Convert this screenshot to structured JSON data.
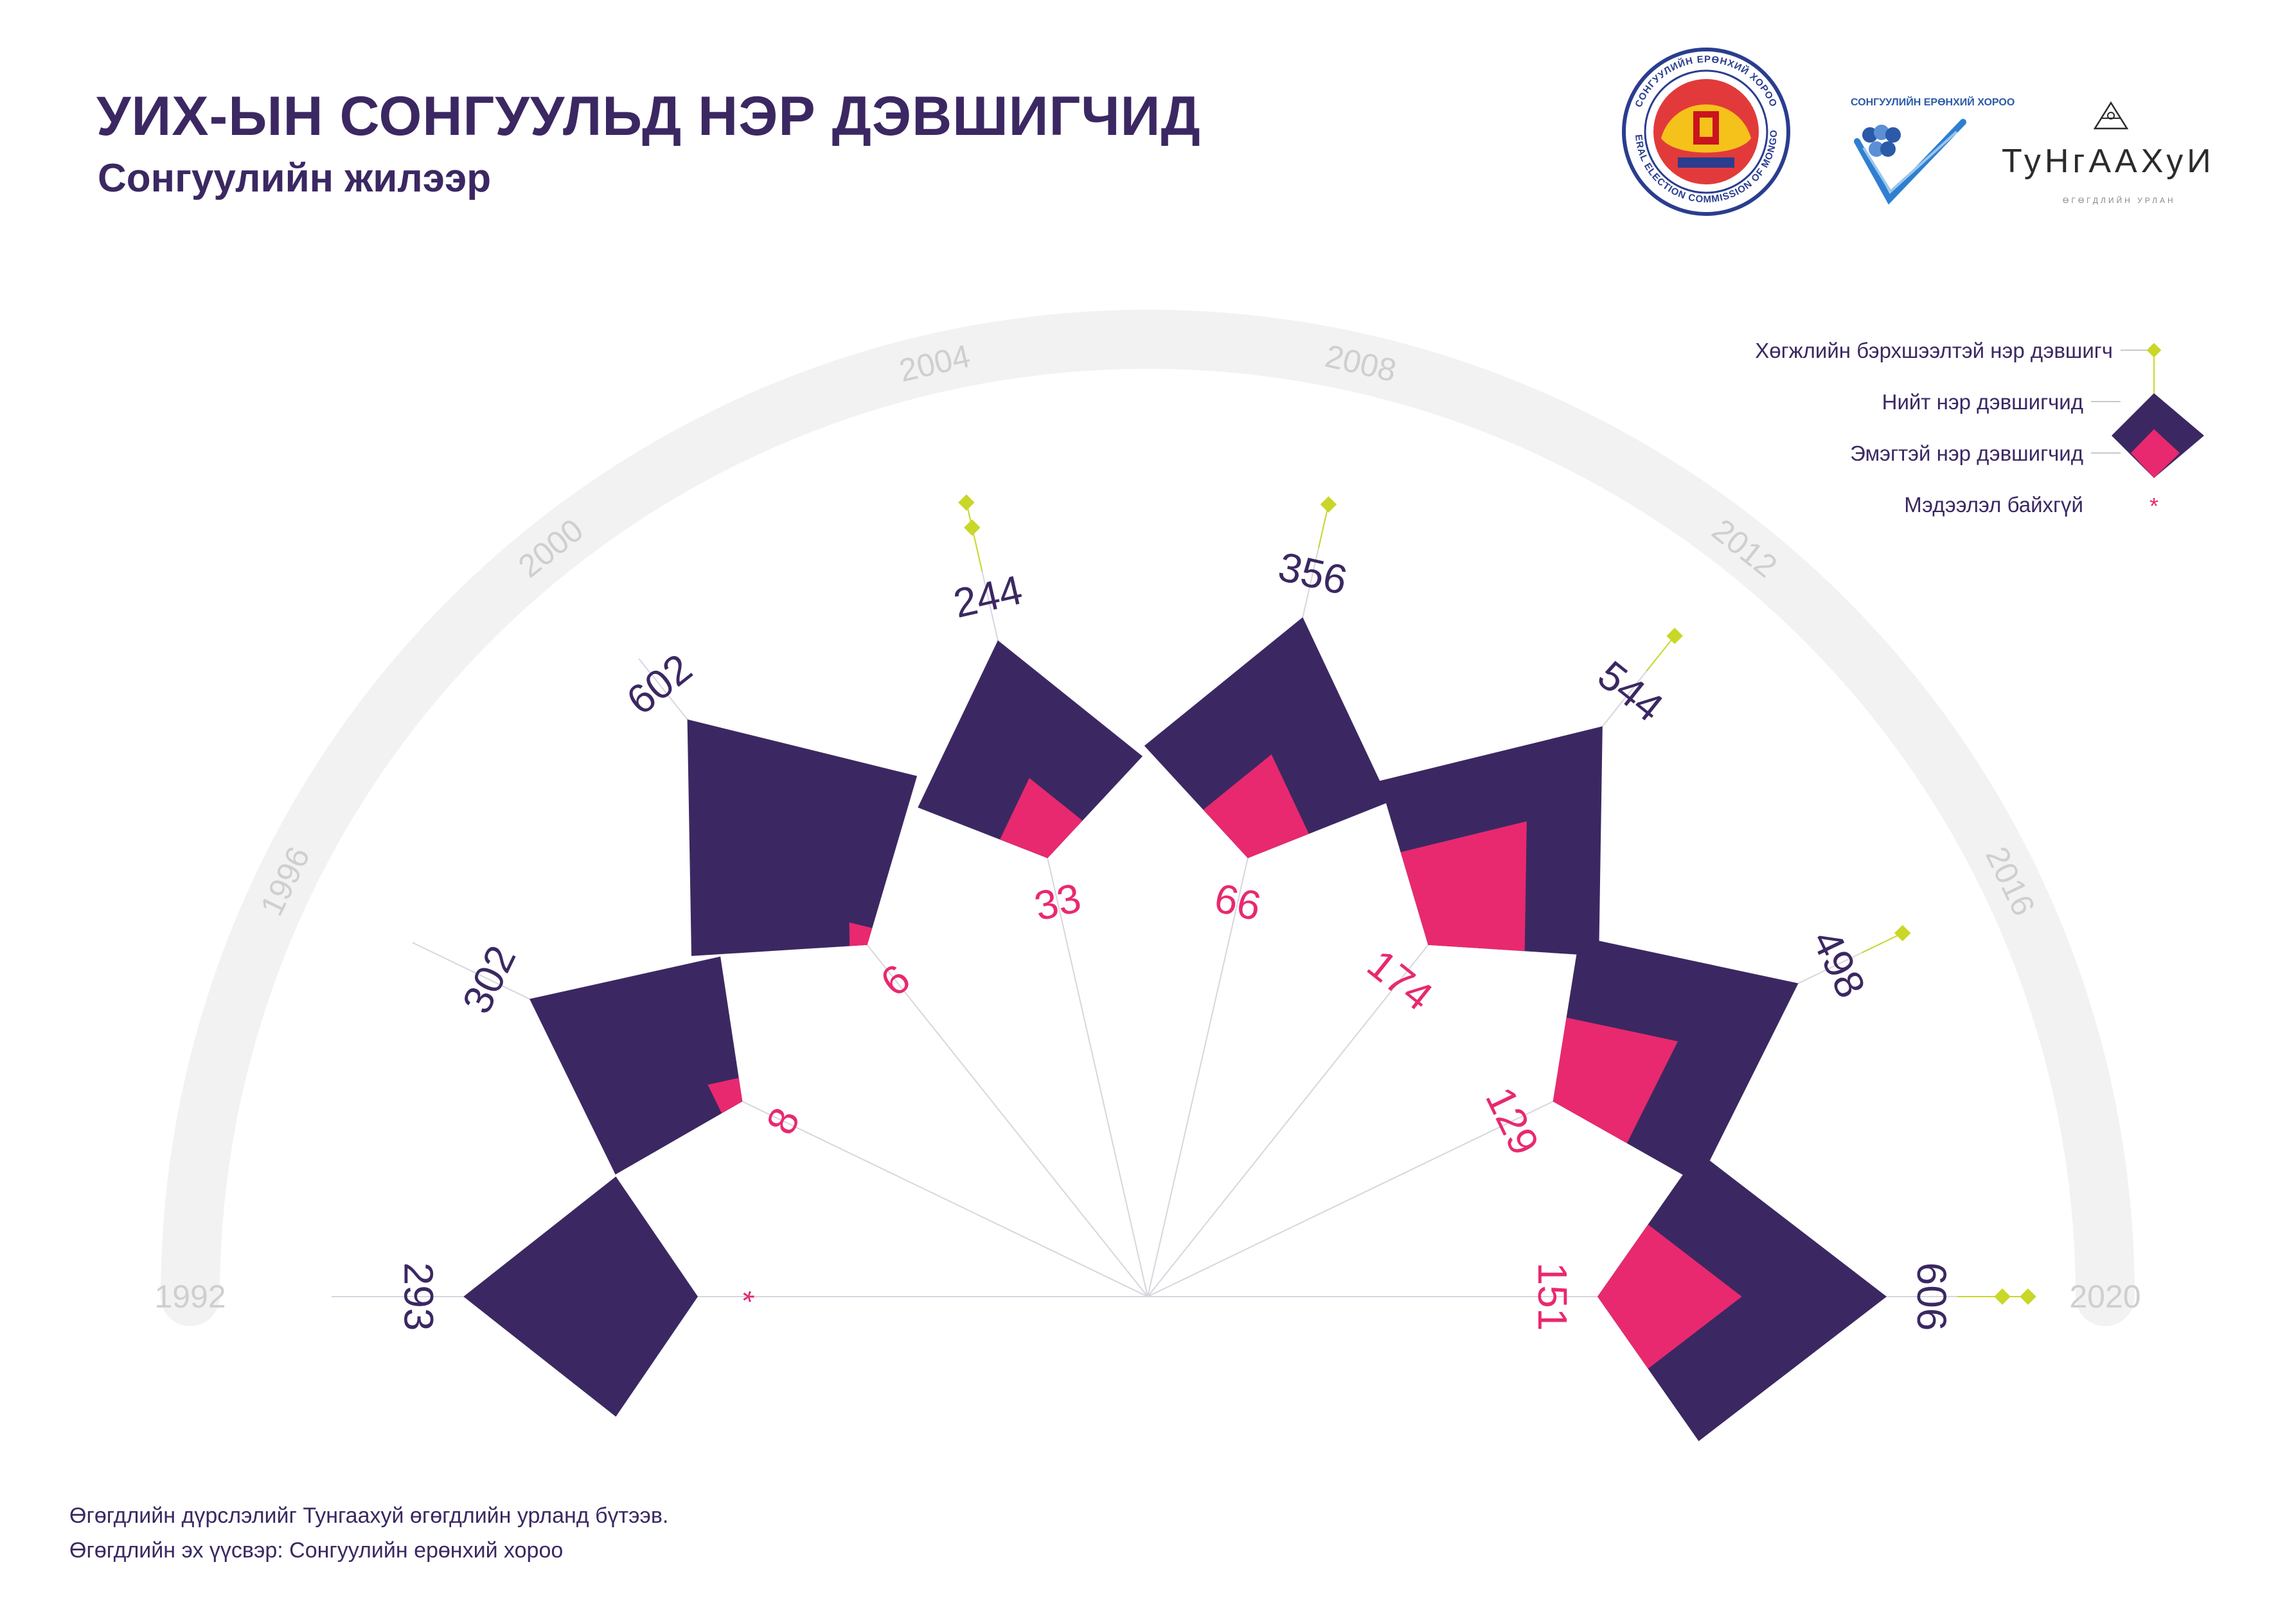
{
  "header": {
    "title": "УИХ-ЫН СОНГУУЛЬД НЭР ДЭВШИГЧИД",
    "subtitle": "Сонгуулийн жилээр"
  },
  "logos": {
    "gec_text": "GENERAL ELECTION COMMISSION OF MONGOLIA",
    "gec_top_text": "СОНГУУЛИЙН ЕРӨНХИЙ ХОРОО",
    "commission_text": "СОНГУУЛИЙН ЕРӨНХИЙ ХОРОО",
    "tungaahui_name": "ТуНгААХуИ",
    "tungaahui_sub": "ӨГӨГДЛИЙН УРЛАН"
  },
  "legend": {
    "disabled": "Хөгжлийн бэрхшээлтэй нэр дэвшигч",
    "total": "Нийт нэр дэвшигчид",
    "female": "Эмэгтэй нэр дэвшигчид",
    "no_data": "Мэдээлэл байхгүй",
    "no_data_symbol": "*"
  },
  "footer": {
    "line1": "Өгөгдлийн дүрслэлийг Тунгаахуй өгөгдлийн урланд бүтээв.",
    "line2": "Өгөгдлийн эх үүсвэр: Сонгуулийн ерөнхий хороо"
  },
  "colors": {
    "total": "#3b2862",
    "female": "#e8296f",
    "disabled": "#c9d728",
    "arc": "#f2f2f2",
    "year": "#cfcfcf",
    "spoke": "#d6d6df",
    "text_dark": "#3b2862"
  },
  "chart_data": {
    "type": "radial-diamond",
    "title": "УИХ-ЫН СОНГУУЛЬД НЭР ДЭВШИГЧИД",
    "subtitle": "Сонгуулийн жилээр",
    "series": [
      {
        "name": "Нийт нэр дэвшигчид",
        "key": "total"
      },
      {
        "name": "Эмэгтэй нэр дэвшигчид",
        "key": "female"
      },
      {
        "name": "Хөгжлийн бэрхшээлтэй нэр дэвшигч",
        "key": "disabled"
      }
    ],
    "years": [
      {
        "year": "1992",
        "total": 293,
        "female": null,
        "female_label": "*",
        "disabled": 0
      },
      {
        "year": "1996",
        "total": 302,
        "female": 8,
        "female_label": "8",
        "disabled": 0
      },
      {
        "year": "2000",
        "total": 602,
        "female": 6,
        "female_label": "6",
        "disabled": 0
      },
      {
        "year": "2004",
        "total": 244,
        "female": 33,
        "female_label": "33",
        "disabled": 2
      },
      {
        "year": "2008",
        "total": 356,
        "female": 66,
        "female_label": "66",
        "disabled": 1
      },
      {
        "year": "2012",
        "total": 544,
        "female": 174,
        "female_label": "174",
        "disabled": 1
      },
      {
        "year": "2016",
        "total": 498,
        "female": 129,
        "female_label": "129",
        "disabled": 1
      },
      {
        "year": "2020",
        "total": 606,
        "female": 151,
        "female_label": "151",
        "disabled": 2
      }
    ]
  }
}
